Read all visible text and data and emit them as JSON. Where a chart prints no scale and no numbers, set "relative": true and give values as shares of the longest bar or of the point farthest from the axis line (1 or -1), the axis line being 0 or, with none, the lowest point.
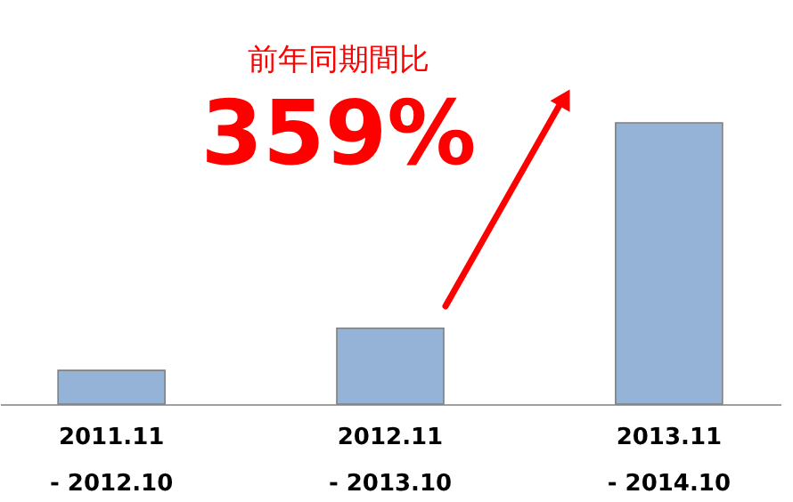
{
  "chart_data": {
    "type": "bar",
    "relative": true,
    "categories": [
      "2011.11\n- 2012.10",
      "2012.11\n- 2013.10",
      "2013.11\n- 2014.10"
    ],
    "values": [
      0.12,
      0.27,
      1
    ],
    "color": "#95b3d7",
    "annotations": [
      "前年同期間比",
      "359%"
    ]
  }
}
